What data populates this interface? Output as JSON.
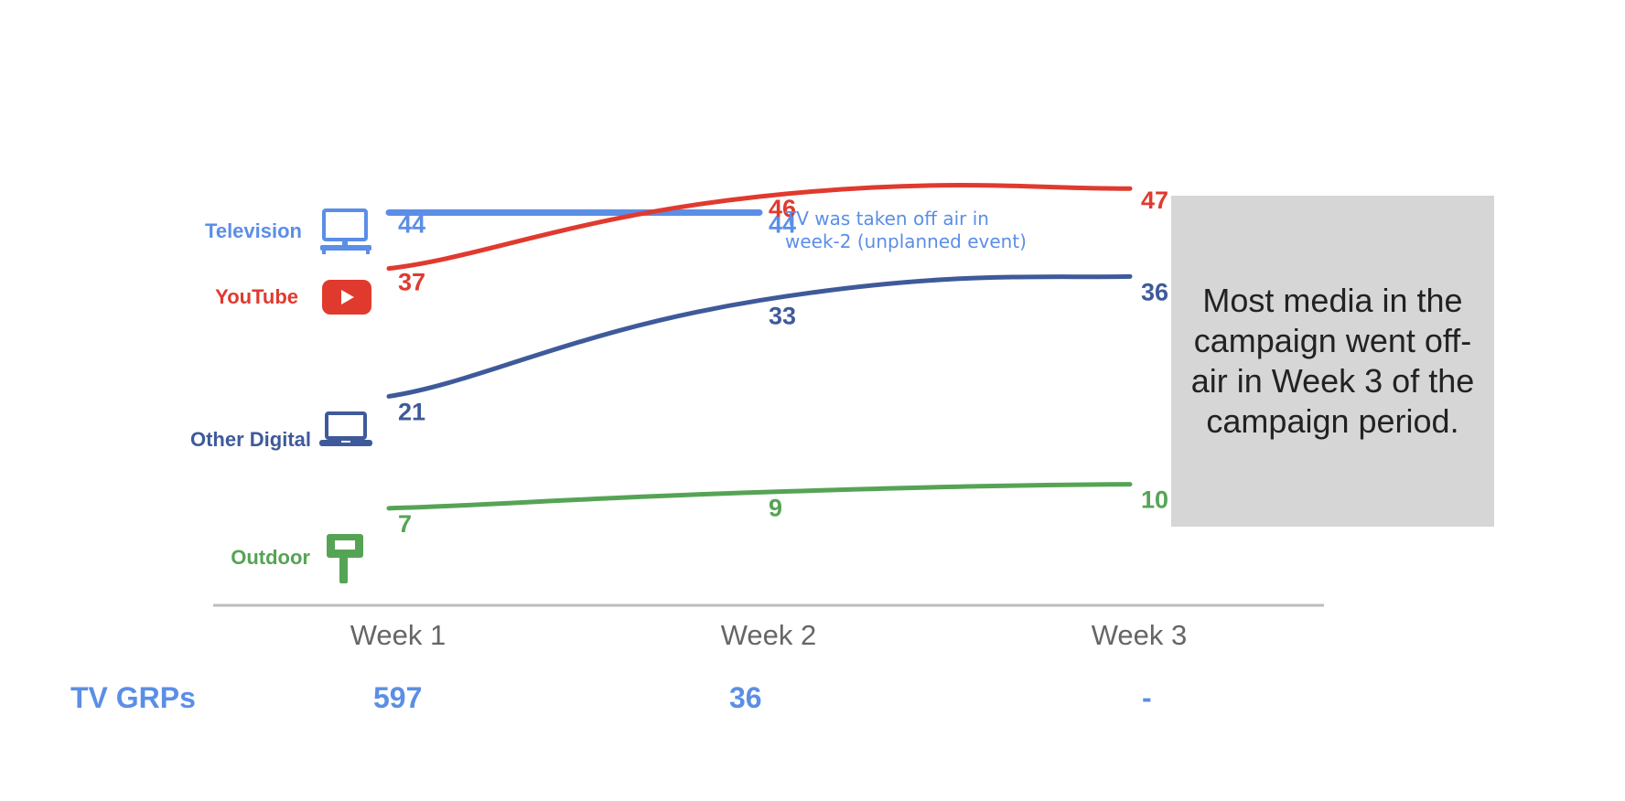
{
  "chart_data": {
    "type": "line",
    "categories": [
      "Week 1",
      "Week 2",
      "Week 3"
    ],
    "series": [
      {
        "name": "Television",
        "values": [
          44,
          44,
          null
        ],
        "color": "#5b8ee6",
        "icon": "tv-icon"
      },
      {
        "name": "YouTube",
        "values": [
          37,
          46,
          47
        ],
        "color": "#e03a2f",
        "icon": "youtube-icon"
      },
      {
        "name": "Other Digital",
        "values": [
          21,
          33,
          36
        ],
        "color": "#3f5a9a",
        "icon": "laptop-icon"
      },
      {
        "name": "Outdoor",
        "values": [
          7,
          9,
          10
        ],
        "color": "#55a455",
        "icon": "signpost-icon"
      }
    ],
    "point_labels": [
      [
        "44",
        "44",
        ""
      ],
      [
        "37",
        "46",
        "47"
      ],
      [
        "21",
        "33",
        "36"
      ],
      [
        "7",
        "9",
        "10"
      ]
    ],
    "annotation": "TV was taken off air in week-2 (unplanned event)",
    "ylim": [
      0,
      50
    ],
    "grid": false,
    "legend": "left"
  },
  "callout": {
    "text": "Most media in the campaign went off-air in Week 3 of the campaign period."
  },
  "grp_row": {
    "label": "TV GRPs",
    "values": [
      "597",
      "36",
      "-"
    ]
  },
  "colors": {
    "axis": "#bdbdbd",
    "tick_text": "#666666",
    "callout_bg": "#d6d6d6",
    "grp_text": "#5b8ee6"
  }
}
